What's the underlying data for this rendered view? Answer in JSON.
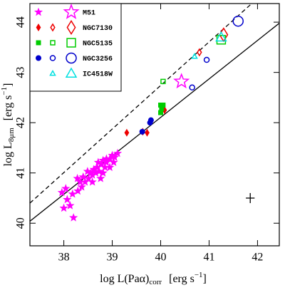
{
  "chart_data": {
    "type": "scatter",
    "xlabel": {
      "main": "log L(Paα)",
      "sub": "corr",
      "unit": "[erg s",
      "sup": "−1",
      "close": "]"
    },
    "ylabel": {
      "main": "log L",
      "sub": "8μm",
      "unit": "[erg s",
      "sup": "−1",
      "close": "]"
    },
    "xlim": [
      37.3,
      42.45
    ],
    "ylim": [
      39.55,
      44.37
    ],
    "xticks": [
      38,
      39,
      40,
      41,
      42
    ],
    "yticks": [
      40,
      41,
      42,
      43,
      44
    ],
    "legend": "upper left",
    "lines": [
      {
        "style": "solid",
        "x": [
          37.3,
          42.45
        ],
        "y": [
          40.04,
          43.98
        ]
      },
      {
        "style": "dashed",
        "x": [
          37.3,
          41.88
        ],
        "y": [
          40.4,
          44.37
        ]
      }
    ],
    "error_bar": {
      "x": 41.85,
      "y": 40.5,
      "xerr": 0.09,
      "yerr": 0.1
    },
    "series": [
      {
        "name": "M51",
        "color": "#ff00ff",
        "marker": "star",
        "groups": [
          {
            "style": "filled",
            "size": "small",
            "x": [
              38.04,
              37.96,
              38.07,
              38.13,
              38.0,
              38.2,
              38.18,
              38.29,
              38.37,
              38.44,
              38.51,
              38.59,
              38.56,
              38.66,
              38.73,
              38.69,
              38.78,
              38.85,
              38.88,
              38.95,
              38.88,
              39.0,
              39.05,
              39.11,
              38.81,
              38.71,
              38.62,
              38.49,
              38.4,
              38.34,
              38.28,
              39.03,
              38.95,
              38.81,
              38.76,
              38.59
            ],
            "y": [
              40.69,
              40.61,
              40.47,
              40.35,
              40.3,
              40.11,
              40.58,
              40.64,
              40.72,
              40.82,
              40.89,
              40.96,
              41.0,
              41.0,
              41.03,
              41.11,
              41.17,
              41.11,
              41.21,
              41.28,
              41.28,
              41.35,
              41.31,
              41.39,
              41.25,
              41.21,
              41.07,
              41.03,
              40.92,
              40.82,
              40.89,
              41.21,
              41.11,
              41.0,
              40.89,
              40.82
            ]
          },
          {
            "style": "open",
            "size": "large",
            "x": [
              40.43
            ],
            "y": [
              42.82
            ]
          }
        ]
      },
      {
        "name": "NGC7130",
        "color": "#ee0000",
        "marker": "diamond",
        "groups": [
          {
            "style": "filled",
            "size": "small",
            "x": [
              39.3,
              39.63,
              39.72,
              40.08
            ],
            "y": [
              41.8,
              41.82,
              41.8,
              42.25
            ]
          },
          {
            "style": "open",
            "size": "small",
            "x": [
              40.8
            ],
            "y": [
              43.4
            ]
          },
          {
            "style": "open",
            "size": "large",
            "x": [
              41.3
            ],
            "y": [
              43.75
            ]
          }
        ]
      },
      {
        "name": "NGC5135",
        "color": "#00cc00",
        "marker": "square",
        "groups": [
          {
            "style": "filled",
            "size": "small",
            "x": [
              40.0,
              40.05,
              40.0,
              40.02
            ],
            "y": [
              42.35,
              42.35,
              42.2,
              42.28
            ]
          },
          {
            "style": "open",
            "size": "small",
            "x": [
              40.05
            ],
            "y": [
              42.82
            ]
          },
          {
            "style": "open",
            "size": "large",
            "x": [
              41.25
            ],
            "y": [
              43.65
            ]
          }
        ]
      },
      {
        "name": "NGC3256",
        "color": "#0000cc",
        "marker": "circle",
        "groups": [
          {
            "style": "filled",
            "size": "small",
            "x": [
              39.78,
              39.8,
              39.62
            ],
            "y": [
              42.0,
              42.05,
              41.82
            ]
          },
          {
            "style": "open",
            "size": "small",
            "x": [
              40.65,
              40.95
            ],
            "y": [
              42.7,
              43.25
            ]
          },
          {
            "style": "open",
            "size": "large",
            "x": [
              41.6
            ],
            "y": [
              44.02
            ]
          }
        ]
      },
      {
        "name": "IC4518W",
        "color": "#00e0e0",
        "marker": "triangle",
        "groups": [
          {
            "style": "open",
            "size": "small",
            "x": [
              40.7
            ],
            "y": [
              43.32
            ]
          },
          {
            "style": "open",
            "size": "large",
            "x": [
              41.25
            ],
            "y": [
              43.7
            ]
          }
        ]
      }
    ]
  }
}
